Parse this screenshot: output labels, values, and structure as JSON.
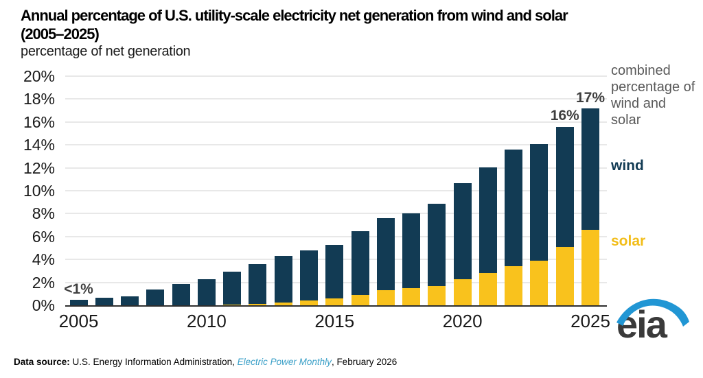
{
  "title": {
    "line1": "Annual percentage of U.S. utility-scale electricity net generation from wind and solar",
    "line2": "(2005–2025)"
  },
  "subtitle": "percentage of net generation",
  "chart_data": {
    "type": "bar",
    "stacked": true,
    "title": "Annual percentage of U.S. utility-scale electricity net generation from wind and solar (2005–2025)",
    "ylabel": "percentage of net generation",
    "categories": [
      2005,
      2006,
      2007,
      2008,
      2009,
      2010,
      2011,
      2012,
      2013,
      2014,
      2015,
      2016,
      2017,
      2018,
      2019,
      2020,
      2021,
      2022,
      2023,
      2024,
      2025
    ],
    "series": [
      {
        "name": "solar",
        "color": "#f9c21d",
        "values": [
          0,
          0,
          0,
          0,
          0,
          0,
          0.05,
          0.1,
          0.25,
          0.4,
          0.6,
          0.9,
          1.3,
          1.5,
          1.7,
          2.3,
          2.8,
          3.4,
          3.9,
          5.1,
          6.6
        ]
      },
      {
        "name": "wind",
        "color": "#123b54",
        "values": [
          0.45,
          0.65,
          0.8,
          1.35,
          1.85,
          2.3,
          2.9,
          3.45,
          4.05,
          4.4,
          4.65,
          5.55,
          6.3,
          6.55,
          7.2,
          8.4,
          9.2,
          10.2,
          10.2,
          10.5,
          10.6
        ]
      }
    ],
    "ylim": [
      0,
      20
    ],
    "y_ticks": [
      "0%",
      "2%",
      "4%",
      "6%",
      "8%",
      "10%",
      "12%",
      "14%",
      "16%",
      "18%",
      "20%"
    ],
    "x_ticks": [
      2005,
      2010,
      2015,
      2020,
      2025
    ],
    "grid": true,
    "legend_position": "right",
    "annotations": [
      {
        "year": 2005,
        "text": "<1%"
      },
      {
        "year": 2024,
        "text": "16%"
      },
      {
        "year": 2025,
        "text": "17%"
      }
    ],
    "side_labels": {
      "combined": "combined percentage of wind and solar",
      "wind": "wind",
      "solar": "solar"
    }
  },
  "footer": {
    "prefix": "Data source: ",
    "org": "U.S. Energy Information Administration, ",
    "publication": "Electric Power Monthly",
    "suffix": ", February 2026"
  },
  "logo": {
    "text": "eia",
    "swoosh_color": "#2196d4",
    "text_color": "#3a3a3a"
  }
}
